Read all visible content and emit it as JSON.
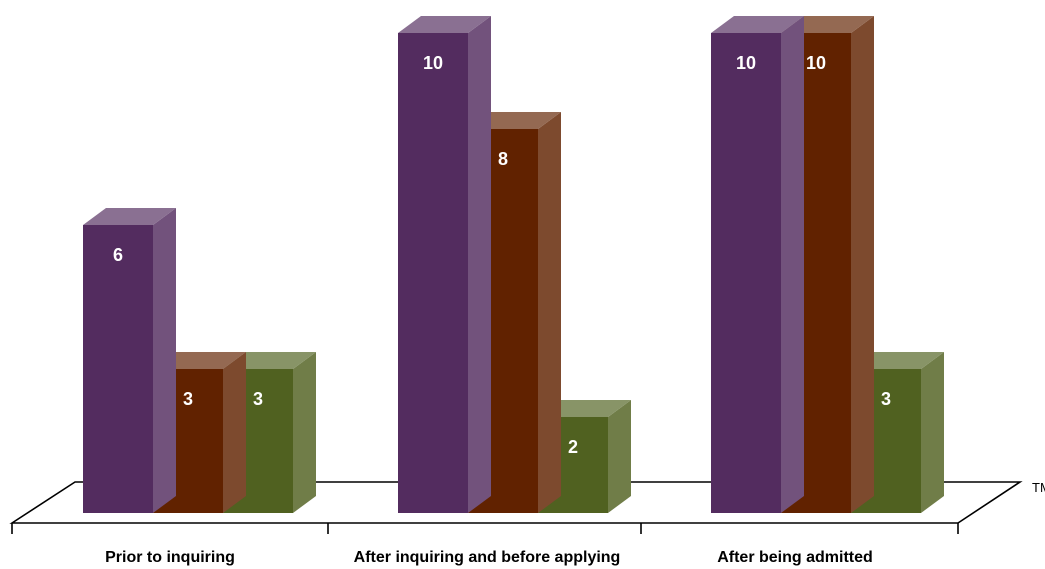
{
  "chart_data": {
    "type": "bar",
    "style": "3d-clustered-column",
    "categories": [
      "Prior to inquiring",
      "After inquiring and before applying",
      "After being admitted"
    ],
    "series": [
      {
        "values": [
          6,
          10,
          10
        ],
        "color": "#532c5f"
      },
      {
        "values": [
          3,
          8,
          10
        ],
        "color": "#612200"
      },
      {
        "values": [
          3,
          2,
          3
        ],
        "color": "#506120"
      }
    ],
    "data_labels": true,
    "ylim": [
      0,
      10
    ],
    "grid": false,
    "legend": "none",
    "corner_note": "TM"
  }
}
